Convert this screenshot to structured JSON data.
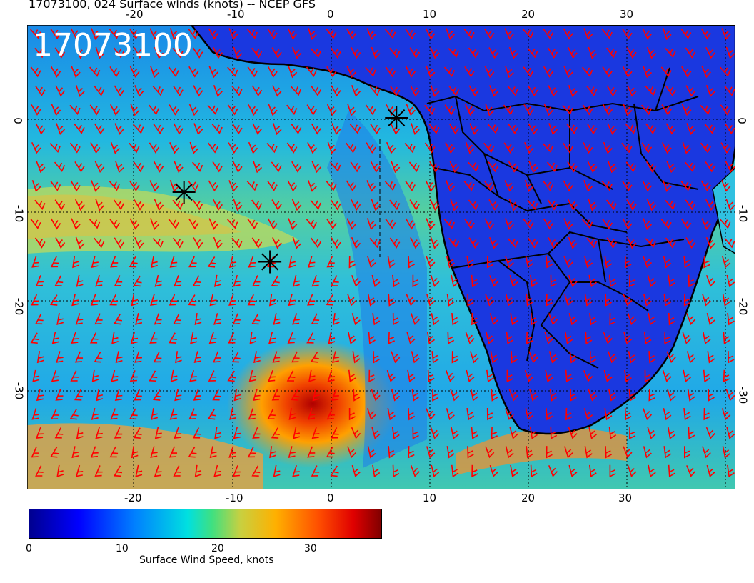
{
  "header": {
    "title": "17073100, 024 Surface winds (knots) -- NCEP GFS"
  },
  "map": {
    "stamp": "17073100",
    "lon_ticks_top": [
      "-20",
      "-10",
      "0",
      "10",
      "20",
      "30"
    ],
    "lon_ticks_bottom": [
      "-20",
      "-10",
      "0",
      "10",
      "20",
      "30"
    ],
    "lat_ticks_left": [
      "0",
      "-10",
      "-20",
      "-30"
    ],
    "lat_ticks_right": [
      "0",
      "-10",
      "-20",
      "-30"
    ],
    "lon_range": [
      -30,
      40
    ],
    "lat_range": [
      -40,
      10
    ],
    "barb_color": "#ff0000",
    "markers": [
      {
        "name": "storm-marker",
        "lon": 6.5,
        "lat": 0
      },
      {
        "name": "storm-marker",
        "lon": -14.5,
        "lat": -8
      },
      {
        "name": "storm-marker",
        "lon": -6,
        "lat": -15.5
      }
    ]
  },
  "colorbar": {
    "title": "Surface Wind Speed, knots",
    "labels": [
      "0",
      "10",
      "20",
      "30"
    ],
    "range": [
      0,
      37
    ]
  }
}
